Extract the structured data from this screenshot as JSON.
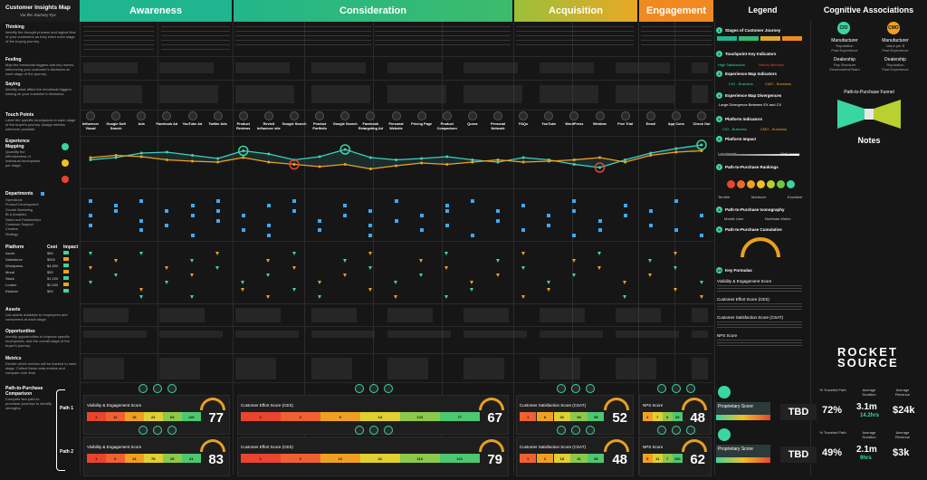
{
  "title": "Customer Insights Map",
  "subtitle": "Via the Journey Fyx",
  "stages": [
    {
      "label": "Awareness",
      "color": "#1fb58f"
    },
    {
      "label": "Consideration",
      "color": "#34b874"
    },
    {
      "label": "Acquisition",
      "color": "#e0a82a"
    },
    {
      "label": "Engagement",
      "color": "#f08a20"
    }
  ],
  "legend_title": "Legend",
  "cognitive_title": "Cognitive Associations",
  "left_rows": [
    {
      "title": "Thinking",
      "desc": "Identify the thought process and logical flow of your customers as they enter each stage of the buying journey."
    },
    {
      "title": "Feeling",
      "desc": "Map the emotional triggers and key moves influencing your customer's decisions at each stage of the journey."
    },
    {
      "title": "Saying",
      "desc": "Identify what affect the emotional triggers having on your customer's decisions."
    },
    {
      "title": "Touch Points",
      "desc": "Label the specific touchpoints in each stage of the buyer's journey. Assign metrics wherever possible."
    },
    {
      "title": "Experience Mapping",
      "desc": "Quantify the effectiveness of individual touchpoints per stage."
    },
    {
      "title": "Departments",
      "desc": ""
    },
    {
      "title": "Platform",
      "desc": ""
    },
    {
      "title": "Assets",
      "desc": "List assets available to employees and consumers at each stage."
    },
    {
      "title": "Opportunities",
      "desc": "Identify opportunities to improve specific touchpoints, and the overall stage of the buyer's journey."
    },
    {
      "title": "Metrics",
      "desc": "Decide which metrics will be tracked to each stage. Collect these data metrics and compare over time."
    },
    {
      "title": "Path-to-Purchase Comparison",
      "desc": "Compare two path-to-purchase journeys to identify strengths."
    }
  ],
  "departments": [
    "Operations",
    "Product Development",
    "Growth Marketing",
    "BI & Analytics",
    "Sales and Partnerships",
    "Customer Support",
    "Creative",
    "Strategy"
  ],
  "platform_header": {
    "name": "Platform",
    "cost": "Cost",
    "impact": "Impact"
  },
  "platforms": [
    {
      "name": "Azure",
      "cost": "$50"
    },
    {
      "name": "Salesforce",
      "cost": "$500"
    },
    {
      "name": "Wordpress",
      "cost": "$4,500"
    },
    {
      "name": "Mural",
      "cost": "$50"
    },
    {
      "name": "Slack",
      "cost": "$1,200"
    },
    {
      "name": "Looker",
      "cost": "$2,000"
    },
    {
      "name": "Kickbox",
      "cost": "$50"
    }
  ],
  "touchpoints": [
    "Influencer Visual",
    "Google Soft Search",
    "Ads",
    "Facebook Ad",
    "YouTube Ad",
    "Twitter Ads",
    "Product Reviews",
    "Revisit Influencer site",
    "Google Search",
    "Product Portfolio",
    "Google Search",
    "Facebook Retargeting Ad",
    "Personal Website",
    "Pricing Page",
    "Product Comparison",
    "Quora",
    "Personal Network",
    "FAQs",
    "YouTube",
    "WordPress",
    "Webinar",
    "Free Trial",
    "Email",
    "App Cons",
    "Check Out"
  ],
  "gauges": [
    {
      "title": "Visibility & Engagement Score",
      "score": "77",
      "segs": [
        "1",
        "12",
        "15",
        "22",
        "63",
        "115"
      ]
    },
    {
      "title": "Customer Effort Score (CES)",
      "score": "67",
      "segs": [
        "1",
        "2",
        "5",
        "14",
        "123",
        "77"
      ]
    },
    {
      "title": "Customer Satisfaction Score (CSAT)",
      "score": "52",
      "segs": [
        "1",
        "8",
        "32",
        "54",
        "55"
      ]
    },
    {
      "title": "NPS Score",
      "score": "48",
      "segs": [
        "2",
        "7",
        "6",
        "49"
      ]
    },
    {
      "title": "Visibility & Engagement Score",
      "score": "83",
      "segs": [
        "1",
        "6",
        "13",
        "75",
        "29",
        "41"
      ]
    },
    {
      "title": "Customer Effort Score (CES)",
      "score": "79",
      "segs": [
        "1",
        "2",
        "13",
        "41",
        "113",
        "121"
      ]
    },
    {
      "title": "Customer Satisfaction Score (CSAT)",
      "score": "48",
      "segs": [
        "1",
        "2",
        "18",
        "21",
        "55"
      ]
    },
    {
      "title": "NPS Score",
      "score": "62",
      "segs": [
        "5",
        "11",
        "7",
        "100"
      ]
    }
  ],
  "paths": [
    "Path 1",
    "Path 2"
  ],
  "legend_items": [
    "Stages of Customer Journey",
    "Touchpoint Key Indicators",
    "Experience Map Indicators",
    "Experience Map Divergences",
    "Platform Indicators",
    "Platform Impact",
    "Path-to-Purchase Rankings",
    "Path-to-Purchase Iconography",
    "Path-to-Purchase Cumulative",
    "Key Formulas"
  ],
  "legend_sub": {
    "high_sat": "High Satisfaction",
    "needs_attention": "Needs Attention",
    "cio_business": "CIO - Business",
    "cmo_business": "CMO - Business",
    "divergence": "Large Divergence Between EX and CX",
    "low_impact": "Low Impact",
    "high_impact": "High Impact",
    "terrible": "Terrible",
    "mediocre": "Mediocre",
    "excellent": "Excellent",
    "mobile_user": "Mobile User",
    "northstar": "Northstar Metric"
  },
  "cognitive": {
    "cio": "CIO",
    "cmo": "CMO",
    "left_title": "Manufacturer",
    "left_items": [
      "Reputation",
      "Past Experience"
    ],
    "right_title": "Manufacturer",
    "right_items": [
      "Value per $",
      "Past Experience"
    ],
    "left2_title": "Dealership",
    "left2_items": [
      "Pay Structure",
      "Environment/Team"
    ],
    "right2_title": "Dealership",
    "right2_items": [
      "Reputation",
      "Past Experience"
    ],
    "funnel": "Path-to-Purchase Funnel",
    "notes": "Notes"
  },
  "brand": {
    "line1": "ROCKET",
    "line2": "SOURCE"
  },
  "kpis": [
    {
      "prop": "Proprietary Score",
      "tbd": "TBD",
      "traveled": "72%",
      "duration": "3.1m",
      "duration2": "14.2hrs",
      "revenue": "$24k"
    },
    {
      "prop": "Proprietary Score",
      "tbd": "TBD",
      "traveled": "49%",
      "duration": "2.1m",
      "duration2": "9hrs",
      "revenue": "$3k"
    }
  ],
  "kpi_labels": {
    "traveled": "% Traveled Path",
    "duration": "Average Duration",
    "revenue": "Average Revenue"
  },
  "formulas": [
    "Visibility & Engagement Score",
    "Customer Effort Score (CES)",
    "Customer Satisfaction Score (CSAT)",
    "NPS Score"
  ],
  "chart_data": {
    "type": "line",
    "title": "Experience Mapping",
    "categories": [
      "Influencer Visual",
      "Google Soft Search",
      "Ads",
      "Facebook Ad",
      "YouTube Ad",
      "Twitter Ads",
      "Product Reviews",
      "Revisit Influencer site",
      "Google Search",
      "Product Portfolio",
      "Google Search",
      "Facebook Retargeting Ad",
      "Personal Website",
      "Pricing Page",
      "Product Comparison",
      "Quora",
      "Personal Network",
      "FAQs",
      "YouTube",
      "WordPress",
      "Webinar",
      "Free Trial",
      "Email",
      "App Cons",
      "Check Out"
    ],
    "series": [
      {
        "name": "CX",
        "color": "#3fd0c0",
        "values": [
          55,
          60,
          70,
          72,
          65,
          58,
          75,
          68,
          55,
          62,
          78,
          60,
          55,
          58,
          62,
          55,
          50,
          60,
          55,
          45,
          38,
          55,
          70,
          80,
          88
        ]
      },
      {
        "name": "EX",
        "color": "#f0a020",
        "values": [
          60,
          65,
          62,
          55,
          52,
          50,
          60,
          50,
          45,
          40,
          45,
          35,
          42,
          48,
          45,
          50,
          55,
          50,
          52,
          55,
          60,
          50,
          65,
          72,
          75
        ]
      }
    ],
    "ylim": [
      0,
      100
    ]
  }
}
